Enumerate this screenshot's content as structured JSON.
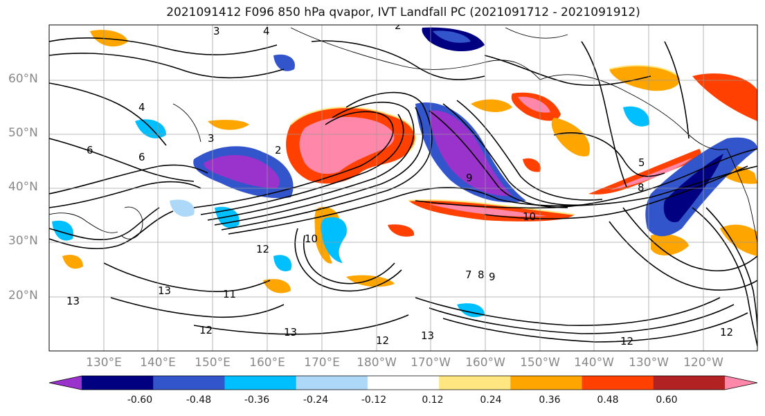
{
  "title": "2021091412 F096 850 hPa qvapor, IVT Landfall PC (2021091712 - 2021091912)",
  "latitude_labels": [
    "60°N",
    "50°N",
    "40°N",
    "30°N",
    "20°N"
  ],
  "longitude_labels": [
    "130°E",
    "140°E",
    "150°E",
    "160°E",
    "170°E",
    "180°W",
    "170°W",
    "160°W",
    "150°W",
    "140°W",
    "130°W",
    "120°W"
  ],
  "contour_labels": [
    "3",
    "4",
    "2",
    "4",
    "3",
    "2",
    "5",
    "6",
    "6",
    "9",
    "8",
    "10",
    "10",
    "12",
    "13",
    "13",
    "11",
    "12",
    "13",
    "13",
    "12",
    "12",
    "9",
    "8",
    "7",
    "12"
  ],
  "colorbar": {
    "tick_labels": [
      "-0.60",
      "-0.48",
      "-0.36",
      "-0.24",
      "-0.12",
      "0.12",
      "0.24",
      "0.36",
      "0.48",
      "0.60"
    ],
    "colors": [
      "#9933cc",
      "#000080",
      "#3355cc",
      "#00bfff",
      "#add8f8",
      "#ffffff",
      "#ffe680",
      "#ffa500",
      "#ff4000",
      "#b22222",
      "#ff88aa"
    ]
  }
}
